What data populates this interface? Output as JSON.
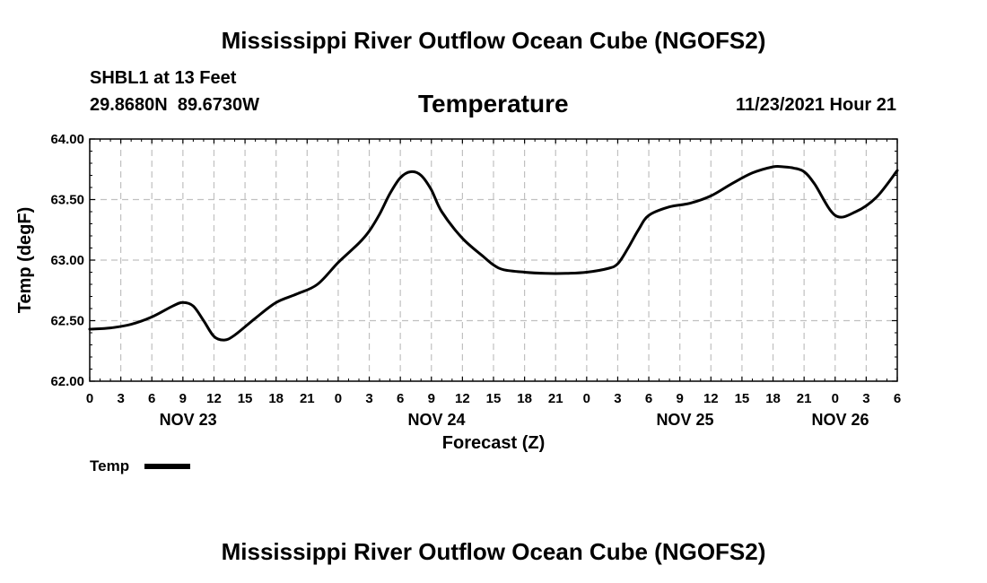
{
  "page": {
    "title_top": "Mississippi River Outflow Ocean Cube (NGOFS2)",
    "title_bottom": "Mississippi River Outflow Ocean Cube (NGOFS2)",
    "station": "SHBL1 at 13 Feet",
    "coords": "29.8680N  89.6730W",
    "datetime": "11/23/2021 Hour 21"
  },
  "chart_data": {
    "type": "line",
    "title": "Temperature",
    "xlabel": "Forecast (Z)",
    "ylabel": "Temp (degF)",
    "xlim": [
      0,
      78
    ],
    "ylim": [
      62.0,
      64.0
    ],
    "yticks": [
      "62.00",
      "62.50",
      "63.00",
      "63.50",
      "64.00"
    ],
    "ytick_values": [
      62.0,
      62.5,
      63.0,
      63.5,
      64.0
    ],
    "xtick_values": [
      0,
      3,
      6,
      9,
      12,
      15,
      18,
      21,
      24,
      27,
      30,
      33,
      36,
      39,
      42,
      45,
      48,
      51,
      54,
      57,
      60,
      63,
      66,
      69,
      72,
      75,
      78
    ],
    "xtick_labels": [
      "0",
      "3",
      "6",
      "9",
      "12",
      "15",
      "18",
      "21",
      "0",
      "3",
      "6",
      "9",
      "12",
      "15",
      "18",
      "21",
      "0",
      "3",
      "6",
      "9",
      "12",
      "15",
      "18",
      "21",
      "0",
      "3",
      "6"
    ],
    "date_labels": [
      {
        "label": "NOV 23",
        "hour": 9.5
      },
      {
        "label": "NOV 24",
        "hour": 33.5
      },
      {
        "label": "NOV 25",
        "hour": 57.5
      },
      {
        "label": "NOV 26",
        "hour": 72.5
      }
    ],
    "grid": true,
    "legend": "bottom-left",
    "series": [
      {
        "name": "Temp",
        "color": "#000000",
        "x": [
          0,
          2,
          4,
          6,
          8,
          9,
          10,
          11,
          12,
          13,
          14,
          16,
          18,
          20,
          22,
          24,
          26,
          27,
          28,
          29,
          30,
          31,
          32,
          33,
          34,
          36,
          38,
          39,
          40,
          42,
          44,
          46,
          48,
          50,
          51,
          52,
          53,
          54,
          56,
          58,
          60,
          62,
          64,
          66,
          67,
          68,
          69,
          70,
          72,
          74,
          76,
          78
        ],
        "values": [
          62.43,
          62.44,
          62.47,
          62.53,
          62.62,
          62.65,
          62.62,
          62.5,
          62.37,
          62.34,
          62.38,
          62.52,
          62.65,
          62.72,
          62.8,
          62.98,
          63.14,
          63.24,
          63.38,
          63.55,
          63.68,
          63.73,
          63.7,
          63.58,
          63.4,
          63.18,
          63.03,
          62.96,
          62.92,
          62.9,
          62.89,
          62.89,
          62.9,
          62.93,
          62.97,
          63.1,
          63.25,
          63.37,
          63.44,
          63.47,
          63.53,
          63.63,
          63.72,
          63.77,
          63.77,
          63.76,
          63.73,
          63.63,
          63.37,
          63.4,
          63.52,
          63.74
        ]
      }
    ]
  }
}
